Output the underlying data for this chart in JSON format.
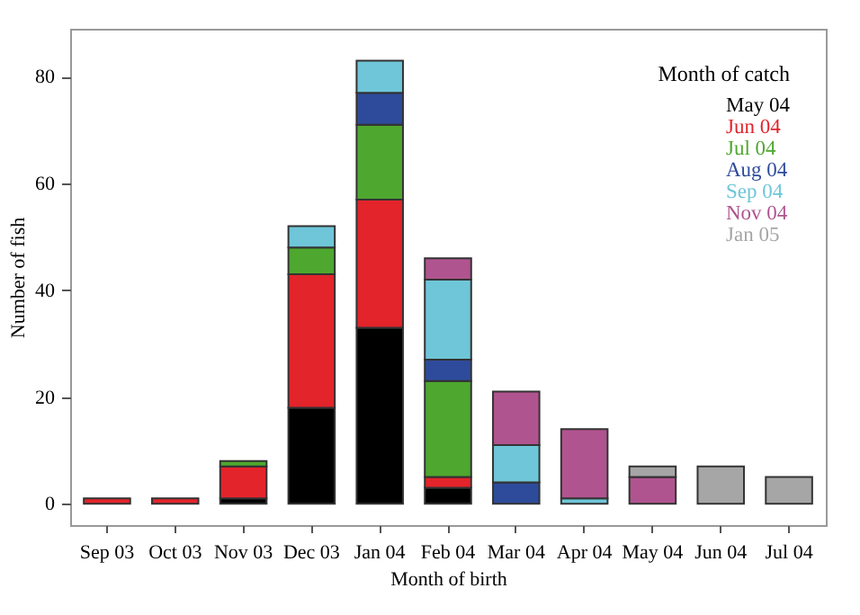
{
  "chart_data": {
    "type": "bar",
    "stacked": true,
    "xlabel": "Month of birth",
    "ylabel": "Number of fish",
    "legend_title": "Month of catch",
    "legend": "top right",
    "categories": [
      "Sep 03",
      "Oct 03",
      "Nov 03",
      "Dec 03",
      "Jan 04",
      "Feb 04",
      "Mar 04",
      "Apr 04",
      "May 04",
      "Jun 04",
      "Jul 04"
    ],
    "ylim": [
      -4,
      89
    ],
    "yticks": [
      0,
      20,
      40,
      60,
      80
    ],
    "series": [
      {
        "name": "May 04",
        "color": "#000000",
        "values": [
          null,
          null,
          1,
          18,
          33,
          3,
          null,
          null,
          null,
          null,
          null
        ]
      },
      {
        "name": "Jun 04",
        "color": "#e3242b",
        "values": [
          1,
          1,
          6,
          25,
          24,
          2,
          null,
          null,
          null,
          null,
          null
        ]
      },
      {
        "name": "Jul 04",
        "color": "#4ea72e",
        "values": [
          null,
          null,
          1,
          5,
          14,
          18,
          null,
          null,
          null,
          null,
          null
        ]
      },
      {
        "name": "Aug 04",
        "color": "#2e4b9b",
        "values": [
          null,
          null,
          null,
          null,
          6,
          4,
          4,
          null,
          null,
          null,
          null
        ]
      },
      {
        "name": "Sep 04",
        "color": "#6ec6d8",
        "values": [
          null,
          null,
          null,
          4,
          6,
          15,
          7,
          1,
          null,
          null,
          null
        ]
      },
      {
        "name": "Nov 04",
        "color": "#b0548f",
        "values": [
          null,
          null,
          null,
          null,
          null,
          4,
          10,
          13,
          5,
          null,
          null
        ]
      },
      {
        "name": "Jan 05",
        "color": "#a6a6a6",
        "values": [
          null,
          null,
          null,
          null,
          null,
          null,
          null,
          null,
          2,
          7,
          5
        ]
      }
    ]
  }
}
